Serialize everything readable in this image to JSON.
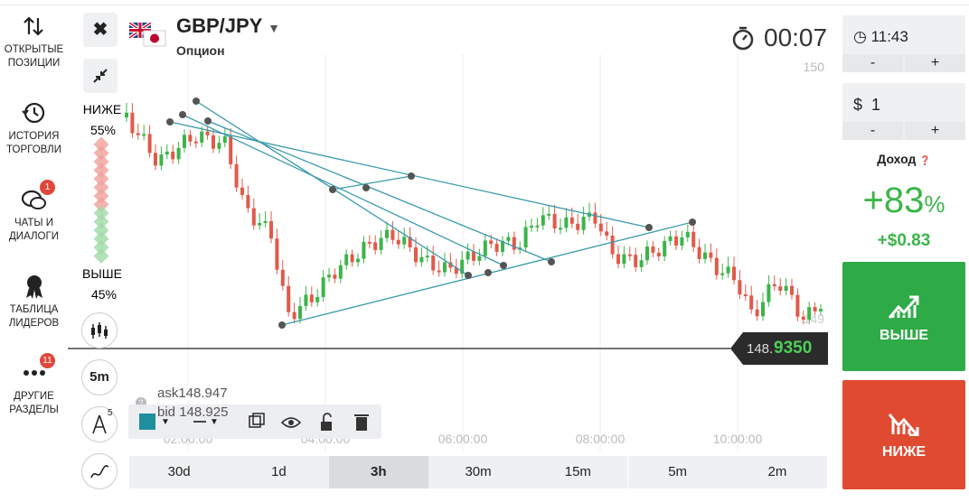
{
  "sidebar": [
    {
      "lines": [
        "ОТКРЫТЫЕ",
        "ПОЗИЦИИ"
      ]
    },
    {
      "lines": [
        "ИСТОРИЯ",
        "ТОРГОВЛИ"
      ]
    },
    {
      "lines": [
        "ЧАТЫ И",
        "ДИАЛОГИ"
      ],
      "badge": "1"
    },
    {
      "lines": [
        "ТАБЛИЦА",
        "ЛИДЕРОВ"
      ]
    },
    {
      "lines": [
        "ДРУГИЕ",
        "РАЗДЕЛЫ"
      ],
      "badge": "11"
    }
  ],
  "header": {
    "pair": "GBP/JPY",
    "kind": "Опцион",
    "timer": "00:07"
  },
  "chart": {
    "price_labels": [
      "150",
      "149"
    ],
    "sentiment": {
      "down_label": "НИЖЕ",
      "down_pct": "55%",
      "up_label": "ВЫШЕ",
      "up_pct": "45%"
    },
    "current_price": {
      "head": "148.",
      "tail": "9350"
    },
    "ask": {
      "label": "ask",
      "value": "148.947"
    },
    "bid": {
      "label": "bid",
      "value": "148.925"
    },
    "time_labels": [
      "02:00:00",
      "04:00:00",
      "06:00:00",
      "08:00:00",
      "10:00:00"
    ],
    "interval": "5m",
    "tool_badge": "5"
  },
  "timeframes": [
    "30d",
    "1d",
    "3h",
    "30m",
    "15m",
    "5m",
    "2m"
  ],
  "active_timeframe": 2,
  "trade": {
    "time": "11:43",
    "minus": "-",
    "plus": "+",
    "currency": "$",
    "amount": "1",
    "income_label": "Доход",
    "income_pct": "+83",
    "pct_sign": "%",
    "income_value": "+$0.83",
    "up_button": "ВЫШЕ",
    "down_button": "НИЖЕ"
  }
}
